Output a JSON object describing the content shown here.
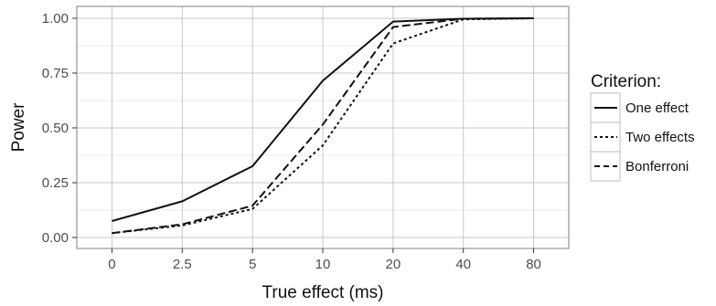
{
  "chart_data": {
    "type": "line",
    "xlabel": "True effect (ms)",
    "ylabel": "Power",
    "categories": [
      "0",
      "2.5",
      "5",
      "10",
      "20",
      "40",
      "80"
    ],
    "ylim": [
      0,
      1
    ],
    "yticks": [
      "0.00",
      "0.25",
      "0.50",
      "0.75",
      "1.00"
    ],
    "grid": true,
    "legend_title": "Criterion:",
    "legend_position": "right",
    "series": [
      {
        "name": "One effect",
        "dash": "solid",
        "values": [
          0.075,
          0.165,
          0.325,
          0.715,
          0.985,
          0.998,
          1.0
        ]
      },
      {
        "name": "Two effects",
        "dash": "dotted",
        "values": [
          0.02,
          0.055,
          0.13,
          0.42,
          0.885,
          0.995,
          1.0
        ]
      },
      {
        "name": "Bonferroni",
        "dash": "dashed",
        "values": [
          0.02,
          0.06,
          0.145,
          0.515,
          0.96,
          0.998,
          1.0
        ]
      }
    ],
    "colors": {
      "panel_background": "#ffffff",
      "grid_major": "#c8c8c8",
      "grid_minor": "#ebebeb",
      "line": "#111111"
    }
  }
}
